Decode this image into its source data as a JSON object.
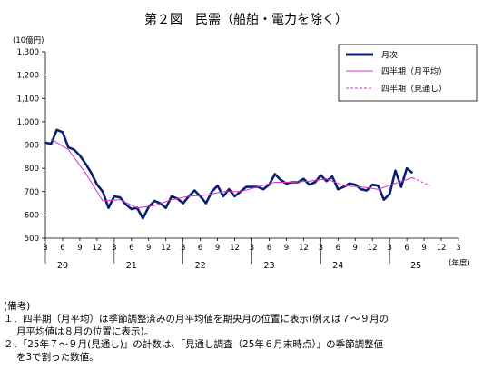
{
  "chart_data": {
    "type": "line",
    "title": "第２図　民需（船舶・電力を除く）",
    "yunit": "(10億円)",
    "xunit": "(年度)",
    "ylim": [
      500,
      1300
    ],
    "yticks": [
      500,
      600,
      700,
      800,
      900,
      "1,000",
      "1,100",
      "1,200",
      "1,300"
    ],
    "yticks_values": [
      500,
      600,
      700,
      800,
      900,
      1000,
      1100,
      1200,
      1300
    ],
    "x_tick_labels": [
      "3",
      "6",
      "9",
      "12",
      "3",
      "6",
      "9",
      "12",
      "3",
      "6",
      "9",
      "12",
      "3",
      "6",
      "9",
      "12",
      "3",
      "6",
      "9",
      "12",
      "3",
      "6",
      "9",
      "12",
      "3"
    ],
    "year_labels": [
      "20",
      "21",
      "22",
      "23",
      "24",
      "25"
    ],
    "legend": {
      "monthly": "月次",
      "quarterly": "四半期（月平均）",
      "outlook": "四半期（見通し）"
    },
    "colors": {
      "monthly": "#0a1f6e",
      "quarterly": "#cc33cc",
      "outlook": "#cc33cc"
    },
    "monthly_values": [
      910,
      905,
      965,
      955,
      890,
      880,
      855,
      820,
      780,
      730,
      700,
      630,
      680,
      675,
      645,
      625,
      630,
      585,
      635,
      660,
      650,
      630,
      680,
      670,
      650,
      680,
      705,
      680,
      650,
      700,
      725,
      680,
      710,
      680,
      700,
      720,
      720,
      720,
      710,
      730,
      775,
      750,
      735,
      740,
      740,
      755,
      730,
      740,
      770,
      745,
      765,
      710,
      720,
      735,
      730,
      710,
      705,
      730,
      725,
      665,
      690,
      790,
      720,
      800,
      780
    ],
    "quarterly": [
      {
        "month_index": 1,
        "value": 925
      },
      {
        "month_index": 4,
        "value": 880
      },
      {
        "month_index": 7,
        "value": 780
      },
      {
        "month_index": 10,
        "value": 660
      },
      {
        "month_index": 13,
        "value": 665
      },
      {
        "month_index": 16,
        "value": 630
      },
      {
        "month_index": 19,
        "value": 640
      },
      {
        "month_index": 22,
        "value": 665
      },
      {
        "month_index": 25,
        "value": 680
      },
      {
        "month_index": 28,
        "value": 685
      },
      {
        "month_index": 31,
        "value": 700
      },
      {
        "month_index": 34,
        "value": 700
      },
      {
        "month_index": 37,
        "value": 720
      },
      {
        "month_index": 40,
        "value": 740
      },
      {
        "month_index": 43,
        "value": 740
      },
      {
        "month_index": 46,
        "value": 745
      },
      {
        "month_index": 49,
        "value": 755
      },
      {
        "month_index": 52,
        "value": 725
      },
      {
        "month_index": 55,
        "value": 720
      },
      {
        "month_index": 58,
        "value": 710
      },
      {
        "month_index": 61,
        "value": 735
      },
      {
        "month_index": 64,
        "value": 760
      }
    ],
    "outlook": [
      {
        "month_index": 64,
        "value": 760
      },
      {
        "month_index": 67,
        "value": 725
      }
    ]
  },
  "notes": {
    "heading": "(備考)",
    "items": [
      {
        "line1": "１．四半期（月平均）は季節調整済みの月平均値を期央月の位置に表示(例えば７～９月の",
        "line2": "月平均値は８月の位置に表示)。"
      },
      {
        "line1": "２．「25年７～９月(見通し)」の計数は、「見通し調査（25年６月末時点）」の季節調整値",
        "line2": "を3で割った数値。"
      }
    ]
  }
}
